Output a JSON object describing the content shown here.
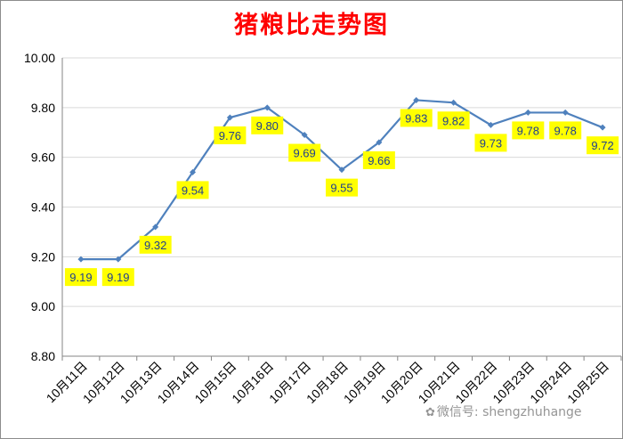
{
  "chart_data": {
    "type": "line",
    "title": "猪粮比走势图",
    "categories": [
      "10月11日",
      "10月12日",
      "10月13日",
      "10月14日",
      "10月15日",
      "10月16日",
      "10月17日",
      "10月18日",
      "10月19日",
      "10月20日",
      "10月21日",
      "10月22日",
      "10月23日",
      "10月24日",
      "10月25日"
    ],
    "series": [
      {
        "values": [
          9.19,
          9.19,
          9.32,
          9.54,
          9.76,
          9.8,
          9.69,
          9.55,
          9.66,
          9.83,
          9.82,
          9.73,
          9.78,
          9.78,
          9.72
        ]
      }
    ],
    "data_labels": [
      "9.19",
      "9.19",
      "9.32",
      "9.54",
      "9.76",
      "9.80",
      "9.69",
      "9.55",
      "9.66",
      "9.83",
      "9.82",
      "9.73",
      "9.78",
      "9.78",
      "9.72"
    ],
    "ylim": [
      8.8,
      10.0
    ],
    "yticks": [
      "8.80",
      "9.00",
      "9.20",
      "9.40",
      "9.60",
      "9.80",
      "10.00"
    ],
    "xlabel": "",
    "ylabel": "",
    "grid": true,
    "legend": "none",
    "colors": {
      "title": "#ff0000",
      "line": "#4f81bd",
      "label_bg": "#ffff00",
      "label_text": "#1f3f8f",
      "grid": "#d9d9d9"
    }
  },
  "watermark": {
    "text": "微信号: shengzhuhange",
    "icon": "wechat-icon"
  }
}
